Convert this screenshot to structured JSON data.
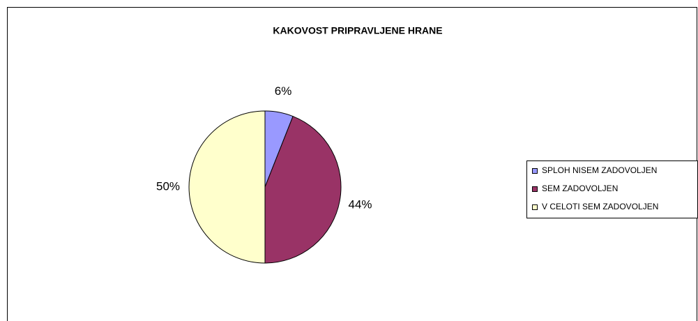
{
  "chart_data": {
    "type": "pie",
    "title": "KAKOVOST PRIPRAVLJENE HRANE",
    "categories": [
      "SPLOH NISEM ZADOVOLJEN",
      "SEM ZADOVOLJEN",
      "V CELOTI SEM ZADOVOLJEN"
    ],
    "values": [
      6,
      44,
      50
    ],
    "value_labels": [
      "6%",
      "44%",
      "50%"
    ],
    "colors": [
      "#9999ff",
      "#993366",
      "#ffffcc"
    ],
    "legend": "right"
  }
}
